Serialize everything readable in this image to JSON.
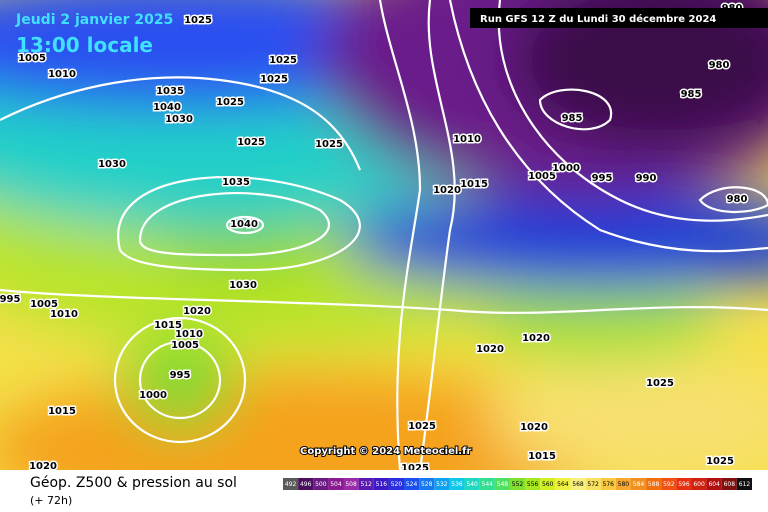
{
  "header": {
    "date": "Jeudi 2 janvier 2025",
    "time": "13:00 locale",
    "run": "Run GFS 12 Z du Lundi 30 décembre 2024"
  },
  "copyright": "Copyright © 2024 Meteociel.fr",
  "footer": {
    "title": "Géop. Z500 & pression au sol",
    "lead": "(+ 72h)"
  },
  "isobar_labels": [
    1025,
    1005,
    1010,
    1025,
    1025,
    1035,
    1040,
    1025,
    1030,
    1030,
    1025,
    1025,
    1035,
    1040,
    1030,
    1010,
    1015,
    1020,
    1005,
    1000,
    995,
    990,
    985,
    985,
    980,
    980,
    980,
    1020,
    1015,
    1010,
    1005,
    995,
    1000,
    1015,
    1020,
    1020,
    1020,
    1015,
    1025,
    1025,
    1025,
    1025,
    1020,
    1010,
    1005,
    995
  ],
  "legend": {
    "values": [
      492,
      496,
      500,
      504,
      508,
      512,
      516,
      520,
      524,
      528,
      532,
      536,
      540,
      544,
      548,
      552,
      556,
      560,
      564,
      568,
      572,
      576,
      580,
      584,
      588,
      592,
      596,
      600,
      604,
      608,
      612
    ],
    "colors": [
      "#5a5a5a",
      "#4a1060",
      "#6a1a80",
      "#8a1a90",
      "#9a2aa8",
      "#5a1ab0",
      "#3a1ac8",
      "#2a30e0",
      "#1a50f0",
      "#1a78f0",
      "#10a0f0",
      "#10c8e8",
      "#20d8c0",
      "#30e090",
      "#50e060",
      "#80e030",
      "#a8e820",
      "#d0f020",
      "#f0f040",
      "#f8f080",
      "#f8e060",
      "#f8c840",
      "#f8a830",
      "#f09020",
      "#f07010",
      "#f05010",
      "#e83010",
      "#d02010",
      "#b01010",
      "#801010",
      "#101010"
    ]
  }
}
